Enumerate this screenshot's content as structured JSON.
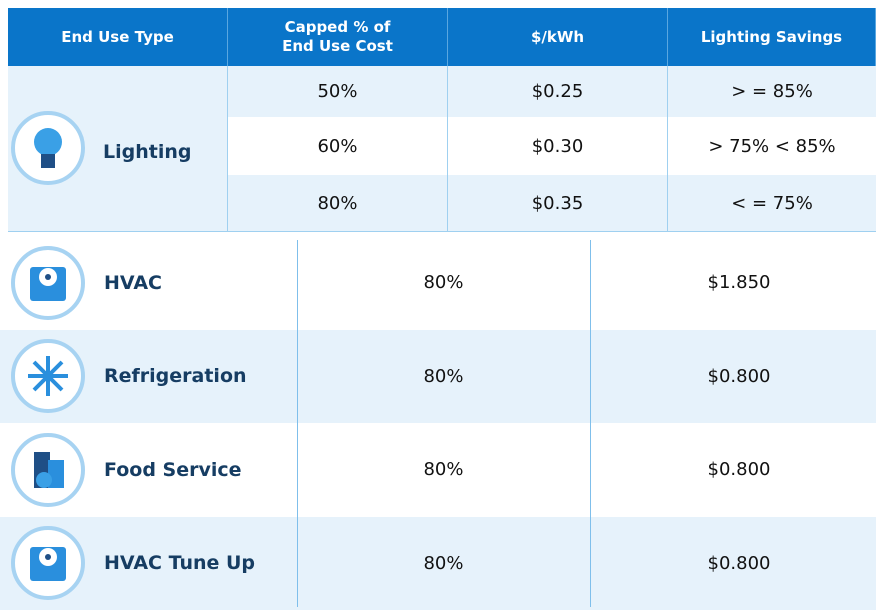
{
  "header": {
    "columns": [
      "End Use Type",
      "Capped % of End Use Cost",
      "$/kWh",
      "Lighting Savings"
    ]
  },
  "lighting": {
    "name": "Lighting",
    "rows": [
      [
        "50%",
        "$0.25",
        "> = 85%"
      ],
      [
        "60%",
        "$0.30",
        "> 75% < 85%"
      ],
      [
        "80%",
        "$0.35",
        "< = 75%"
      ]
    ]
  },
  "rows": [
    {
      "name": "HVAC",
      "capped": "80%",
      "rate": "$1.850"
    },
    {
      "name": "Refrigeration",
      "capped": "80%",
      "rate": "$0.800"
    },
    {
      "name": "Food Service",
      "capped": "80%",
      "rate": "$0.800"
    },
    {
      "name": "HVAC Tune Up",
      "capped": "80%",
      "rate": "$0.800"
    }
  ]
}
